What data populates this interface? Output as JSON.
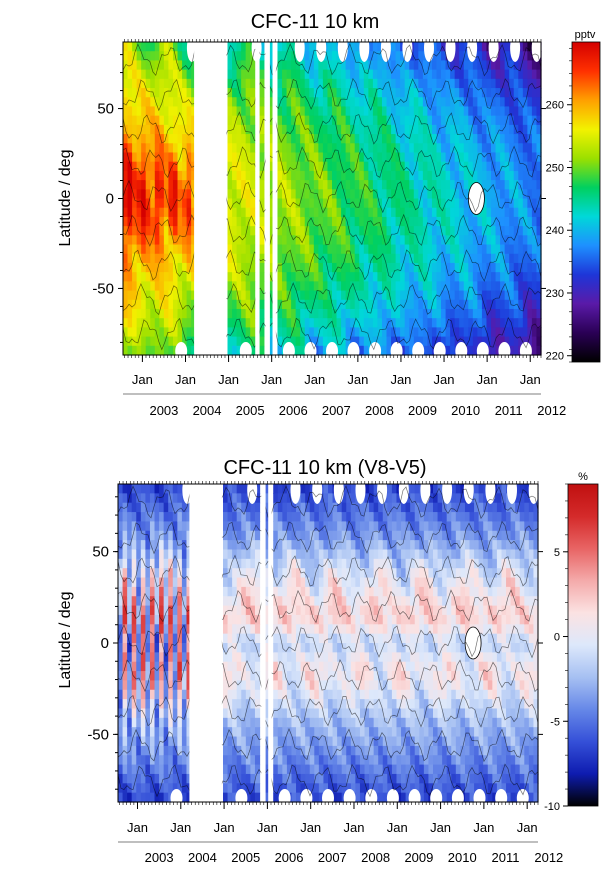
{
  "chart_data": [
    {
      "type": "heatmap",
      "title": "CFC-11 10 km",
      "ylabel": "Latitude / deg",
      "xlabel": "",
      "y_ticks": [
        -50,
        0,
        50
      ],
      "ylim": [
        -87,
        87
      ],
      "x_month_labels": [
        "Jan",
        "Jan",
        "Jan",
        "Jan",
        "Jan",
        "Jan",
        "Jan",
        "Jan",
        "Jan",
        "Jan"
      ],
      "x_year_labels": [
        "2003",
        "2004",
        "2005",
        "2006",
        "2007",
        "2008",
        "2009",
        "2010",
        "2011",
        "2012"
      ],
      "xlim": [
        2002.55,
        2012.25
      ],
      "data_gaps": [
        [
          2004.2,
          2004.95
        ],
        [
          2005.62,
          2005.72
        ],
        [
          2005.86,
          2005.96
        ],
        [
          2006.02,
          2006.1
        ]
      ],
      "colorbar": {
        "unit": "pptv",
        "range": [
          219,
          270
        ],
        "ticks": [
          220,
          230,
          240,
          250,
          260
        ],
        "colors": [
          "#000000",
          "#2a0055",
          "#5a1aa8",
          "#1e36d8",
          "#1e90ff",
          "#00d8d8",
          "#00d060",
          "#9be000",
          "#f2f200",
          "#ffa000",
          "#ff3000",
          "#d40000"
        ]
      }
    },
    {
      "type": "heatmap",
      "title": "CFC-11 10 km (V8-V5)",
      "ylabel": "Latitude / deg",
      "xlabel": "",
      "y_ticks": [
        -50,
        0,
        50
      ],
      "ylim": [
        -87,
        87
      ],
      "x_month_labels": [
        "Jan",
        "Jan",
        "Jan",
        "Jan",
        "Jan",
        "Jan",
        "Jan",
        "Jan",
        "Jan",
        "Jan"
      ],
      "x_year_labels": [
        "2003",
        "2004",
        "2005",
        "2006",
        "2007",
        "2008",
        "2009",
        "2010",
        "2011",
        "2012"
      ],
      "xlim": [
        2002.55,
        2012.25
      ],
      "data_gaps": [
        [
          2004.2,
          2004.95
        ],
        [
          2005.86,
          2005.96
        ],
        [
          2006.02,
          2006.1
        ]
      ],
      "colorbar": {
        "unit": "%",
        "range": [
          -10,
          9
        ],
        "ticks": [
          -10,
          -5,
          0,
          5
        ],
        "colors": [
          "#000000",
          "#0e1cb0",
          "#3550d8",
          "#6688e8",
          "#a6c0f2",
          "#dde8fb",
          "#fbe2e2",
          "#f4aaaa",
          "#e86464",
          "#d42a2a",
          "#c01010"
        ]
      }
    }
  ]
}
